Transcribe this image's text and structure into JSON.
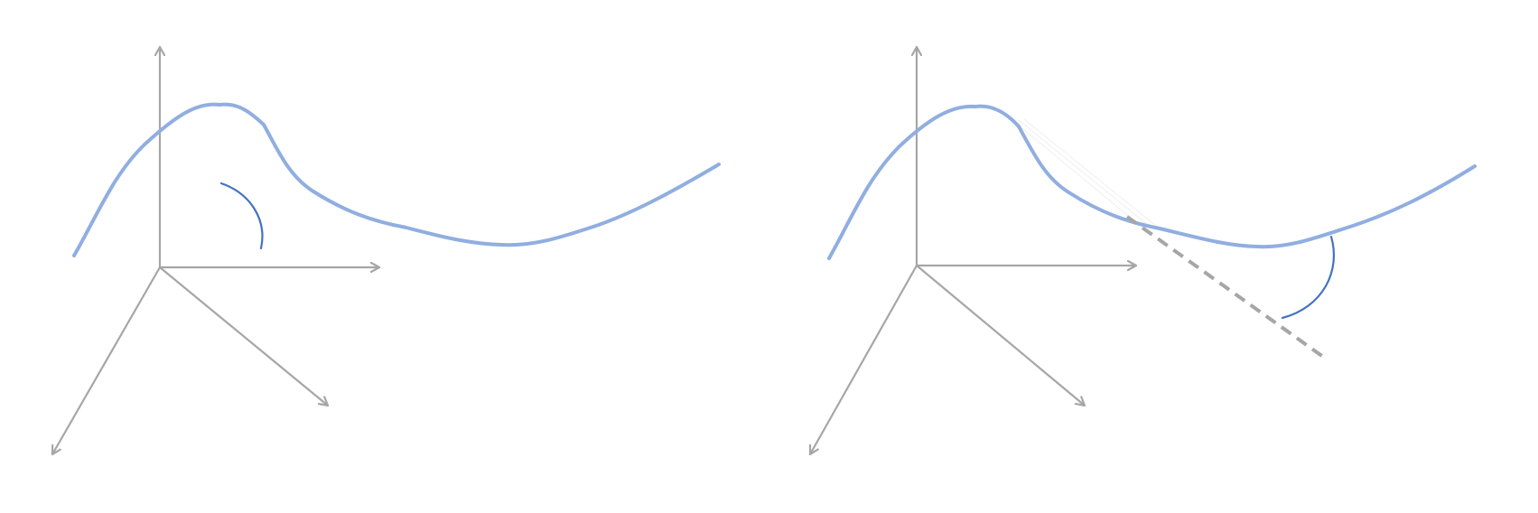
{
  "figure": {
    "panels": [
      "left",
      "right"
    ],
    "colors": {
      "axis": "#a6a6a6",
      "curve": "#90aee0",
      "angle_arc": "#4472c4",
      "tangent_line": "#a6a6a6",
      "background": "#ffffff"
    },
    "text_labels": []
  }
}
